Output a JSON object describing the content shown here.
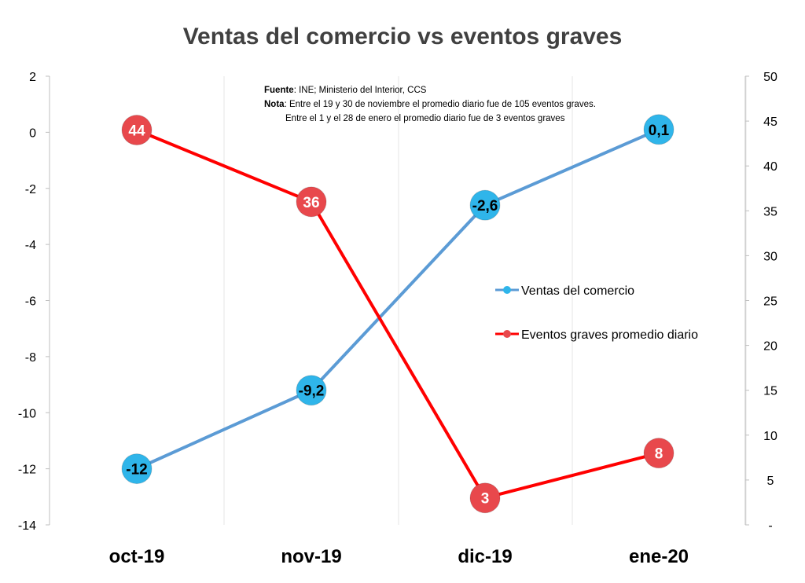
{
  "chart_data": {
    "type": "line",
    "title": "Ventas del comercio vs eventos graves",
    "categories": [
      "oct-19",
      "nov-19",
      "dic-19",
      "ene-20"
    ],
    "y_left": {
      "range": [
        -14,
        2
      ],
      "ticks": [
        2,
        0,
        -2,
        -4,
        -6,
        -8,
        -10,
        -12,
        -14
      ],
      "tick_labels": [
        "2",
        "0",
        "-2",
        "-4",
        "-6",
        "-8",
        "-10",
        "-12",
        "-14"
      ]
    },
    "y_right": {
      "range": [
        0,
        50
      ],
      "ticks": [
        50,
        45,
        40,
        35,
        30,
        25,
        20,
        15,
        10,
        5,
        0
      ],
      "tick_labels": [
        "50",
        "45",
        "40",
        "35",
        "30",
        "25",
        "20",
        "15",
        "10",
        "5",
        "-"
      ]
    },
    "grid": "vertical",
    "legend_position": "center-right",
    "series": [
      {
        "name": "Ventas del comercio",
        "axis": "left",
        "values": [
          -12,
          -9.2,
          -2.6,
          0.1
        ],
        "labels": [
          "-12",
          "-9,2",
          "-2,6",
          "0,1"
        ],
        "line_color": "#5B9BD5",
        "marker_color": "#2FB5EA",
        "label_color": "#000000"
      },
      {
        "name": "Eventos graves promedio diario",
        "axis": "right",
        "values": [
          44,
          36,
          3,
          8
        ],
        "labels": [
          "44",
          "36",
          "3",
          "8"
        ],
        "line_color": "#FF0000",
        "marker_color": "#E8484C",
        "label_color": "#FFFFFF"
      }
    ],
    "annotation": {
      "source_label": "Fuente",
      "source_text": ": INE; Ministerio del Interior, CCS",
      "note_label": "Nota",
      "note_line1": ": Entre el 19 y 30 de noviembre el promedio diario fue de 105  eventos graves.",
      "note_line2": "Entre el 1 y el 28 de enero el promedio diario fue de 3 eventos graves"
    }
  }
}
